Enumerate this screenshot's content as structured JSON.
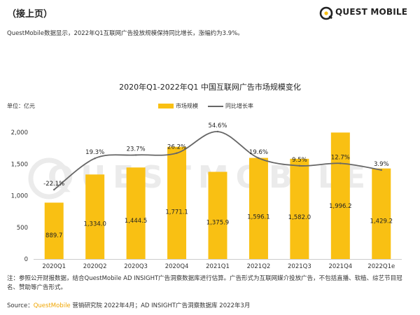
{
  "header": {
    "continued_label": "（接上页）",
    "logo_text": "QUEST MOBILE"
  },
  "lead_text": "QuestMobile数据显示，2022年Q1互联网广告投放规模保持同比增长，涨幅约为3.9%。",
  "colors": {
    "bar": "#f9c013",
    "line": "#666666",
    "accent": "#f0a500",
    "watermark": "#ebebeb"
  },
  "chart_data": {
    "type": "bar",
    "title": "2020年Q1-2022年Q1 中国互联网广告市场规模变化",
    "unit_label": "单位：亿元",
    "categories": [
      "2020Q1",
      "2020Q2",
      "2020Q3",
      "2020Q4",
      "2021Q1",
      "2021Q2",
      "2021Q3",
      "2021Q4",
      "2022Q1e"
    ],
    "series": [
      {
        "name": "市场规模",
        "type": "bar",
        "values": [
          889.7,
          1334.0,
          1444.5,
          1771.1,
          1375.9,
          1596.1,
          1582.0,
          1996.2,
          1429.2
        ],
        "labels": [
          "889.7",
          "1,334.0",
          "1,444.5",
          "1,771.1",
          "1,375.9",
          "1,596.1",
          "1,582.0",
          "1,996.2",
          "1,429.2"
        ]
      },
      {
        "name": "同比增长率",
        "type": "line",
        "unit": "%",
        "values": [
          -22.1,
          19.3,
          23.7,
          26.2,
          54.6,
          19.6,
          9.5,
          12.7,
          3.9
        ],
        "labels": [
          "-22.1%",
          "19.3%",
          "23.7%",
          "26.2%",
          "54.6%",
          "19.6%",
          "9.5%",
          "12.7%",
          "3.9%"
        ]
      }
    ],
    "ylim": [
      0,
      2000
    ],
    "yticks": [
      0,
      500,
      1000,
      1500,
      2000
    ],
    "ytick_labels": [
      "0",
      "500",
      "1,000",
      "1,500",
      "2,000"
    ],
    "grid": false,
    "legend": "top-center",
    "watermark": "QUESTMOBILE"
  },
  "note": "注：参照公开财报数据，结合QuestMobile AD INSIGHT广告洞察数据库进行估算。广告形式为互联网媒介投放广告，不包括直播、软植、综艺节目冠名、赞助等广告形式。",
  "source": {
    "prefix": "Source：",
    "brand": "QuestMobile",
    "rest": " 营销研究院 2022年4月；AD INSIGHT广告洞察数据库 2022年3月"
  }
}
